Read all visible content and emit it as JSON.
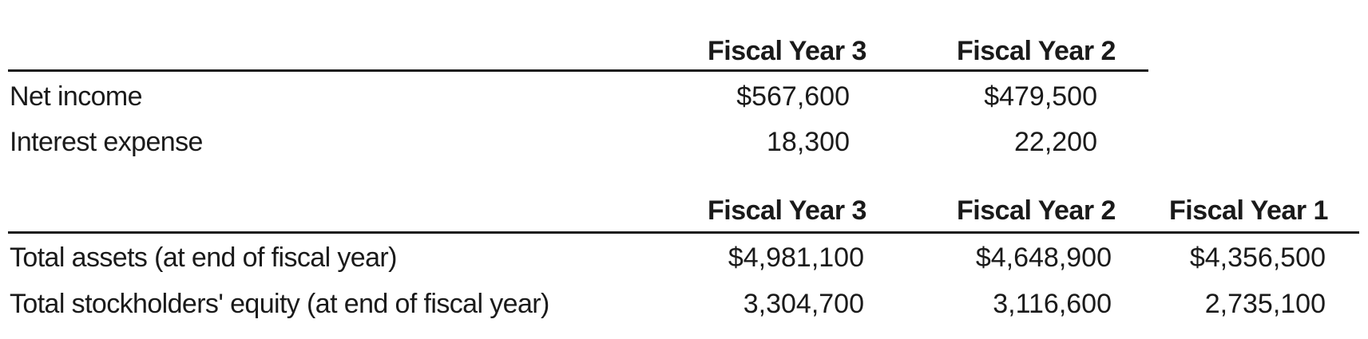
{
  "table1": {
    "headers": [
      "Fiscal Year 3",
      "Fiscal Year 2"
    ],
    "rows": [
      {
        "label": "Net income",
        "values": [
          "$567,600",
          "$479,500"
        ]
      },
      {
        "label": "Interest expense",
        "values": [
          "18,300",
          "22,200"
        ]
      }
    ]
  },
  "table2": {
    "headers": [
      "Fiscal Year 3",
      "Fiscal Year 2",
      "Fiscal Year 1"
    ],
    "rows": [
      {
        "label": "Total assets (at end of fiscal year)",
        "values": [
          "$4,981,100",
          "$4,648,900",
          "$4,356,500"
        ]
      },
      {
        "label": "Total stockholders' equity (at end of fiscal year)",
        "values": [
          "3,304,700",
          "3,116,600",
          "2,735,100"
        ]
      }
    ]
  }
}
